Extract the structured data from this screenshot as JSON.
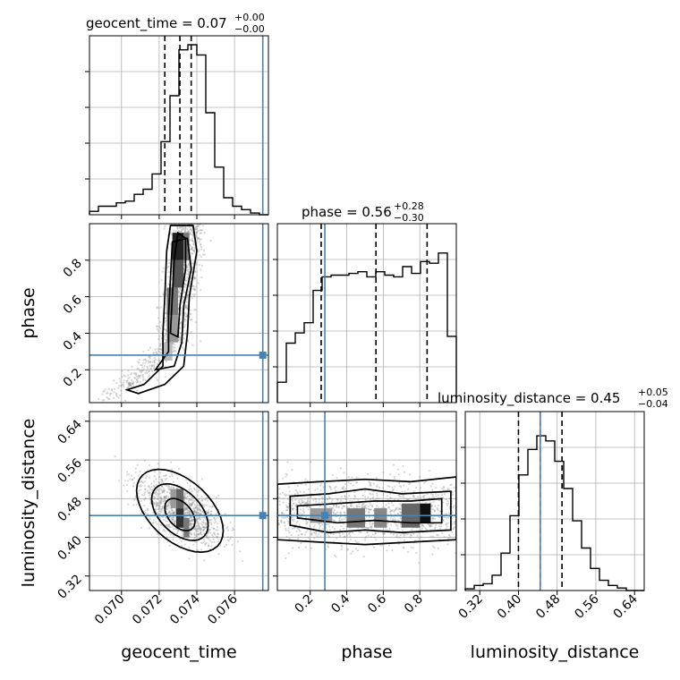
{
  "chart_data": {
    "type": "corner",
    "parameters": [
      "geocent_time",
      "phase",
      "luminosity_distance"
    ],
    "axis_labels": [
      "geocent_time",
      "phase",
      "luminosity_distance"
    ],
    "ranges": {
      "geocent_time": [
        0.0683,
        0.0778
      ],
      "phase": [
        0.02,
        1.0
      ],
      "luminosity_distance": [
        0.29,
        0.66
      ]
    },
    "ticks": {
      "geocent_time": [
        {
          "v": 0.07,
          "label": "0.070"
        },
        {
          "v": 0.072,
          "label": "0.072"
        },
        {
          "v": 0.074,
          "label": "0.074"
        },
        {
          "v": 0.076,
          "label": "0.076"
        }
      ],
      "phase": [
        {
          "v": 0.2,
          "label": "0.2"
        },
        {
          "v": 0.4,
          "label": "0.4"
        },
        {
          "v": 0.6,
          "label": "0.6"
        },
        {
          "v": 0.8,
          "label": "0.8"
        }
      ],
      "luminosity_distance": [
        {
          "v": 0.32,
          "label": "0.32"
        },
        {
          "v": 0.4,
          "label": "0.40"
        },
        {
          "v": 0.48,
          "label": "0.48"
        },
        {
          "v": 0.56,
          "label": "0.56"
        },
        {
          "v": 0.64,
          "label": "0.64"
        }
      ]
    },
    "titles": [
      {
        "param": "geocent_time",
        "main": "geocent_time = 0.07",
        "sup": "+0.00",
        "sub": "−0.00"
      },
      {
        "param": "phase",
        "main": "phase = 0.56",
        "sup": "+0.28",
        "sub": "−0.30"
      },
      {
        "param": "luminosity_distance",
        "main": "luminosity_distance = 0.45",
        "sup": "+0.05",
        "sub": "−0.04"
      }
    ],
    "truths": {
      "geocent_time": 0.0775,
      "phase": 0.28,
      "luminosity_distance": 0.445
    },
    "quantiles": {
      "geocent_time": [
        0.0723,
        0.0731,
        0.0737
      ],
      "phase": [
        0.26,
        0.56,
        0.84
      ],
      "luminosity_distance": [
        0.4,
        0.445,
        0.49
      ]
    },
    "histograms": {
      "geocent_time": {
        "bins": [
          0.0683,
          0.0778
        ],
        "counts": [
          0.02,
          0.05,
          0.05,
          0.07,
          0.08,
          0.12,
          0.15,
          0.24,
          0.43,
          0.7,
          0.97,
          1.0,
          0.94,
          0.6,
          0.28,
          0.1,
          0.05,
          0.03,
          0.01,
          0.0
        ]
      },
      "phase": {
        "bins": [
          0.02,
          1.0
        ],
        "counts": [
          0.12,
          0.35,
          0.41,
          0.47,
          0.66,
          0.74,
          0.75,
          0.75,
          0.76,
          0.77,
          0.74,
          0.77,
          0.75,
          0.74,
          0.8,
          0.76,
          0.83,
          0.82,
          0.88,
          0.39
        ]
      },
      "luminosity_distance": {
        "bins": [
          0.29,
          0.66
        ],
        "counts": [
          0.01,
          0.03,
          0.04,
          0.09,
          0.22,
          0.44,
          0.68,
          0.83,
          0.91,
          0.88,
          0.76,
          0.6,
          0.41,
          0.25,
          0.13,
          0.06,
          0.03,
          0.015,
          0.0,
          0.0
        ]
      }
    },
    "grid": true,
    "contour_levels": 3
  }
}
